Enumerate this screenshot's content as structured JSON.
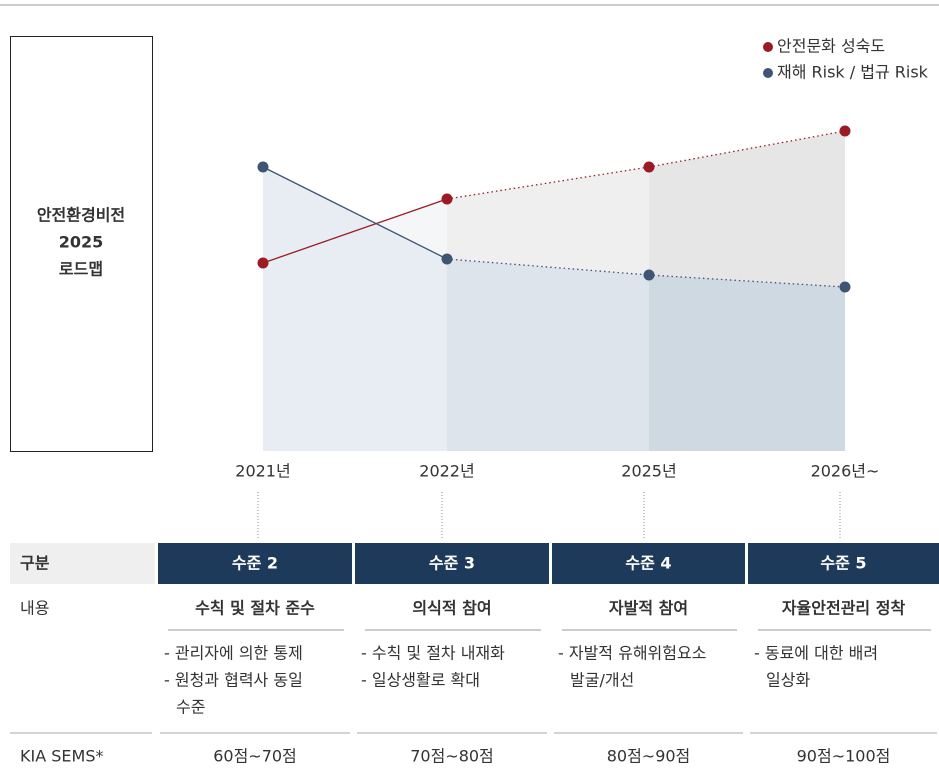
{
  "vision_box": {
    "lines": [
      "안전환경비전",
      "2025",
      "로드맵"
    ]
  },
  "chart_data": {
    "type": "line",
    "categories": [
      "2021년",
      "2022년",
      "2025년",
      "2026년~"
    ],
    "series": [
      {
        "name": "안전문화 성숙도",
        "color": "#9b1b24",
        "values": [
          47,
          63,
          71,
          80
        ]
      },
      {
        "name": "재해 Risk / 법규 Risk",
        "color": "#3f5574",
        "values": [
          71,
          48,
          44,
          41
        ]
      }
    ],
    "ylim": [
      0,
      100
    ],
    "legend": "top-right"
  },
  "table": {
    "header_label": "구분",
    "levels": [
      "수준 2",
      "수준 3",
      "수준 4",
      "수준 5"
    ],
    "content_label": "내용",
    "content_titles": [
      "수칙 및 절차 준수",
      "의식적 참여",
      "자발적 참여",
      "자율안전관리 정착"
    ],
    "content_items": [
      [
        [
          "- 관리자에 의한 통제"
        ],
        [
          "- 원청과 협력사 동일",
          "수준"
        ]
      ],
      [
        [
          "- 수칙 및 절차 내재화"
        ],
        [
          "- 일상생활로 확대"
        ]
      ],
      [
        [
          "- 자발적 유해위험요소",
          "발굴/개선"
        ]
      ],
      [
        [
          "- 동료에 대한 배려",
          "일상화"
        ]
      ]
    ],
    "score_label": "KIA SEMS*",
    "scores": [
      "60점~70점",
      "70점~80점",
      "80점~90점",
      "90점~100점"
    ]
  }
}
